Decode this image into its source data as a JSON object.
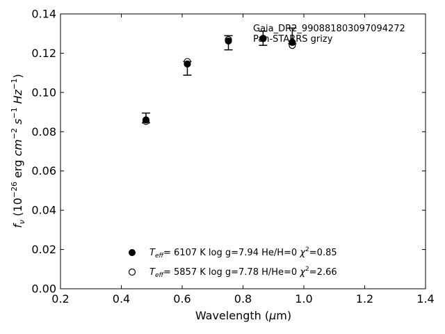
{
  "chart_data": {
    "type": "scatter",
    "title": "",
    "xlabel": "Wavelength (μm)",
    "ylabel": "f_ν (10^-26 erg cm^-2 s^-1 Hz^-1)",
    "xlim": [
      0.2,
      1.4
    ],
    "ylim": [
      0.0,
      0.14
    ],
    "xticks": [
      "0.2",
      "0.4",
      "0.6",
      "0.8",
      "1.0",
      "1.2",
      "1.4"
    ],
    "yticks": [
      "0.00",
      "0.02",
      "0.04",
      "0.06",
      "0.08",
      "0.10",
      "0.12",
      "0.14"
    ],
    "grid": false,
    "annotation": {
      "line1": "Gaia_DR2_990881803097094272",
      "line2": "Pan-STARRS grizy"
    },
    "observed": {
      "name": "Pan-STARRS grizy",
      "points": [
        {
          "x": 0.481,
          "y": 0.087,
          "err": 0.0025
        },
        {
          "x": 0.617,
          "y": 0.1123,
          "err": 0.0035
        },
        {
          "x": 0.752,
          "y": 0.1253,
          "err": 0.0036
        },
        {
          "x": 0.866,
          "y": 0.1276,
          "err": 0.0036
        },
        {
          "x": 0.962,
          "y": 0.1288,
          "err": 0.004
        }
      ]
    },
    "series": [
      {
        "name": "T_eff= 6107 K log g=7.94 He/H=0 χ²=0.85",
        "marker": "filled-circle",
        "x": [
          0.481,
          0.617,
          0.752,
          0.866,
          0.962
        ],
        "y": [
          0.086,
          0.1145,
          0.1262,
          0.1275,
          0.1255
        ]
      },
      {
        "name": "T_eff= 5857 K log g=7.78 H/He=0 χ²=2.66",
        "marker": "open-circle",
        "x": [
          0.481,
          0.617,
          0.752,
          0.866,
          0.962
        ],
        "y": [
          0.0853,
          0.1157,
          0.1269,
          0.1275,
          0.124
        ]
      }
    ],
    "legend": {
      "placement": "lower-center",
      "entries": [
        {
          "teff": "6107 K",
          "logg": "log g=7.94",
          "comp": "He/H=0",
          "chi": "=0.85"
        },
        {
          "teff": "5857 K",
          "logg": "log g=7.78",
          "comp": "H/He=0",
          "chi": "=2.66"
        }
      ]
    }
  }
}
